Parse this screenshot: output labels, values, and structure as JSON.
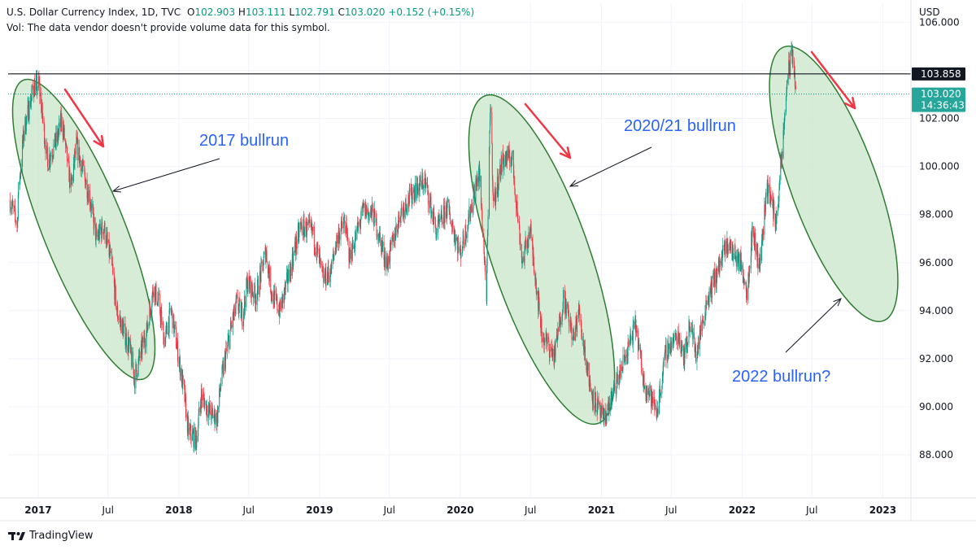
{
  "header": {
    "symbol": "U.S. Dollar Currency Index, 1D, TVC",
    "open_label": "O",
    "open": "102.903",
    "high_label": "H",
    "high": "103.111",
    "low_label": "L",
    "low": "102.791",
    "close_label": "C",
    "close": "103.020",
    "change": "+0.152 (+0.15%)",
    "volume_note": "Vol: The data vendor doesn't provide volume data for this symbol."
  },
  "branding": {
    "name": "TradingView",
    "logo_icon": "tradingview-logo-icon"
  },
  "colors": {
    "up": "#089981",
    "down": "#f23645",
    "annotation_ellipse": "#2e7d32",
    "annotation_fill": "#c8e6c9",
    "arrow_red": "#f23645",
    "text_blue": "#2962ff"
  },
  "chart_data": {
    "type": "candlestick",
    "currency": "USD",
    "y_axis": {
      "unit": "USD",
      "ticks": [
        88.0,
        90.0,
        92.0,
        94.0,
        96.0,
        98.0,
        100.0,
        102.0,
        104.0,
        106.0
      ],
      "tick_labels": [
        "88.000",
        "90.000",
        "92.000",
        "94.000",
        "96.000",
        "98.000",
        "100.000",
        "102.000",
        "",
        "106.000"
      ],
      "range": [
        86.2,
        106.8
      ]
    },
    "x_axis": {
      "range": [
        "2016-10-15",
        "2023-03-15"
      ],
      "ticks": [
        {
          "date": "2017-01-01",
          "label": "2017",
          "bold": true
        },
        {
          "date": "2017-07-01",
          "label": "Jul",
          "bold": false
        },
        {
          "date": "2018-01-01",
          "label": "2018",
          "bold": true
        },
        {
          "date": "2018-07-01",
          "label": "Jul",
          "bold": false
        },
        {
          "date": "2019-01-01",
          "label": "2019",
          "bold": true
        },
        {
          "date": "2019-07-01",
          "label": "Jul",
          "bold": false
        },
        {
          "date": "2020-01-01",
          "label": "2020",
          "bold": true
        },
        {
          "date": "2020-07-01",
          "label": "Jul",
          "bold": false
        },
        {
          "date": "2021-01-01",
          "label": "2021",
          "bold": true
        },
        {
          "date": "2021-07-01",
          "label": "Jul",
          "bold": false
        },
        {
          "date": "2022-01-01",
          "label": "2022",
          "bold": true
        },
        {
          "date": "2022-07-01",
          "label": "Jul",
          "bold": false
        },
        {
          "date": "2023-01-01",
          "label": "2023",
          "bold": true
        }
      ]
    },
    "price_path": [
      [
        "2016-10-20",
        98.6
      ],
      [
        "2016-11-08",
        97.6
      ],
      [
        "2016-11-10",
        98.8
      ],
      [
        "2016-11-25",
        101.5
      ],
      [
        "2016-12-20",
        103.3
      ],
      [
        "2017-01-03",
        103.4
      ],
      [
        "2017-01-25",
        100.2
      ],
      [
        "2017-02-20",
        101.2
      ],
      [
        "2017-03-03",
        102.0
      ],
      [
        "2017-03-27",
        99.1
      ],
      [
        "2017-04-10",
        100.9
      ],
      [
        "2017-05-15",
        98.7
      ],
      [
        "2017-06-01",
        97.0
      ],
      [
        "2017-06-20",
        97.5
      ],
      [
        "2017-07-10",
        96.0
      ],
      [
        "2017-07-25",
        93.9
      ],
      [
        "2017-08-10",
        93.2
      ],
      [
        "2017-08-25",
        92.5
      ],
      [
        "2017-09-08",
        91.2
      ],
      [
        "2017-09-20",
        92.0
      ],
      [
        "2017-10-10",
        93.2
      ],
      [
        "2017-10-27",
        95.0
      ],
      [
        "2017-11-10",
        94.3
      ],
      [
        "2017-11-25",
        92.7
      ],
      [
        "2017-12-12",
        94.0
      ],
      [
        "2018-01-01",
        92.0
      ],
      [
        "2018-01-15",
        90.5
      ],
      [
        "2018-01-25",
        89.0
      ],
      [
        "2018-02-15",
        88.6
      ],
      [
        "2018-02-28",
        90.5
      ],
      [
        "2018-03-20",
        89.8
      ],
      [
        "2018-04-10",
        89.5
      ],
      [
        "2018-04-20",
        91.0
      ],
      [
        "2018-05-15",
        93.2
      ],
      [
        "2018-05-31",
        94.3
      ],
      [
        "2018-06-15",
        93.8
      ],
      [
        "2018-06-28",
        95.2
      ],
      [
        "2018-07-20",
        94.6
      ],
      [
        "2018-08-15",
        96.5
      ],
      [
        "2018-08-30",
        94.7
      ],
      [
        "2018-09-20",
        94.0
      ],
      [
        "2018-10-15",
        95.6
      ],
      [
        "2018-11-12",
        97.5
      ],
      [
        "2018-12-14",
        97.3
      ],
      [
        "2019-01-10",
        95.3
      ],
      [
        "2019-01-30",
        95.6
      ],
      [
        "2019-02-15",
        97.0
      ],
      [
        "2019-03-07",
        97.7
      ],
      [
        "2019-03-20",
        96.2
      ],
      [
        "2019-04-25",
        98.2
      ],
      [
        "2019-05-20",
        98.0
      ],
      [
        "2019-06-25",
        95.9
      ],
      [
        "2019-07-30",
        98.1
      ],
      [
        "2019-09-03",
        99.0
      ],
      [
        "2019-10-01",
        99.4
      ],
      [
        "2019-10-31",
        97.3
      ],
      [
        "2019-11-29",
        98.3
      ],
      [
        "2019-12-31",
        96.4
      ],
      [
        "2020-01-15",
        97.3
      ],
      [
        "2020-02-19",
        99.8
      ],
      [
        "2020-03-09",
        94.7
      ],
      [
        "2020-03-19",
        102.8
      ],
      [
        "2020-03-27",
        98.4
      ],
      [
        "2020-04-20",
        100.3
      ],
      [
        "2020-05-14",
        100.4
      ],
      [
        "2020-06-10",
        96.0
      ],
      [
        "2020-06-30",
        97.4
      ],
      [
        "2020-07-31",
        93.0
      ],
      [
        "2020-09-01",
        92.1
      ],
      [
        "2020-09-25",
        94.6
      ],
      [
        "2020-10-21",
        92.8
      ],
      [
        "2020-11-03",
        94.0
      ],
      [
        "2020-12-04",
        90.7
      ],
      [
        "2021-01-06",
        89.4
      ],
      [
        "2021-01-25",
        90.2
      ],
      [
        "2021-03-31",
        93.4
      ],
      [
        "2021-04-20",
        91.1
      ],
      [
        "2021-05-25",
        89.8
      ],
      [
        "2021-06-18",
        92.3
      ],
      [
        "2021-07-20",
        93.0
      ],
      [
        "2021-08-05",
        92.1
      ],
      [
        "2021-08-20",
        93.6
      ],
      [
        "2021-09-03",
        92.1
      ],
      [
        "2021-10-01",
        94.4
      ],
      [
        "2021-11-24",
        96.8
      ],
      [
        "2021-12-31",
        95.9
      ],
      [
        "2022-01-14",
        94.8
      ],
      [
        "2022-01-28",
        97.4
      ],
      [
        "2022-02-15",
        95.8
      ],
      [
        "2022-03-07",
        99.3
      ],
      [
        "2022-03-30",
        97.7
      ],
      [
        "2022-04-15",
        100.5
      ],
      [
        "2022-04-28",
        103.7
      ],
      [
        "2022-05-12",
        104.8
      ],
      [
        "2022-05-20",
        103.1
      ]
    ],
    "price_lines": [
      {
        "value": 103.858,
        "label": "103.858",
        "style": "solid",
        "color": "#131722"
      },
      {
        "value": 103.02,
        "label": "103.020",
        "countdown": "14:36:43",
        "style": "dotted",
        "color": "#089981"
      }
    ],
    "annotations": [
      {
        "type": "text",
        "label": "2017 bullrun",
        "at": [
          "2017-08-01",
          101.2
        ]
      },
      {
        "type": "text",
        "label": "2020/21 bullrun",
        "at": [
          "2020-12-10",
          101.7
        ]
      },
      {
        "type": "text",
        "label": "2022 bullrun?",
        "at": [
          "2022-06-01",
          91.6
        ]
      }
    ]
  }
}
